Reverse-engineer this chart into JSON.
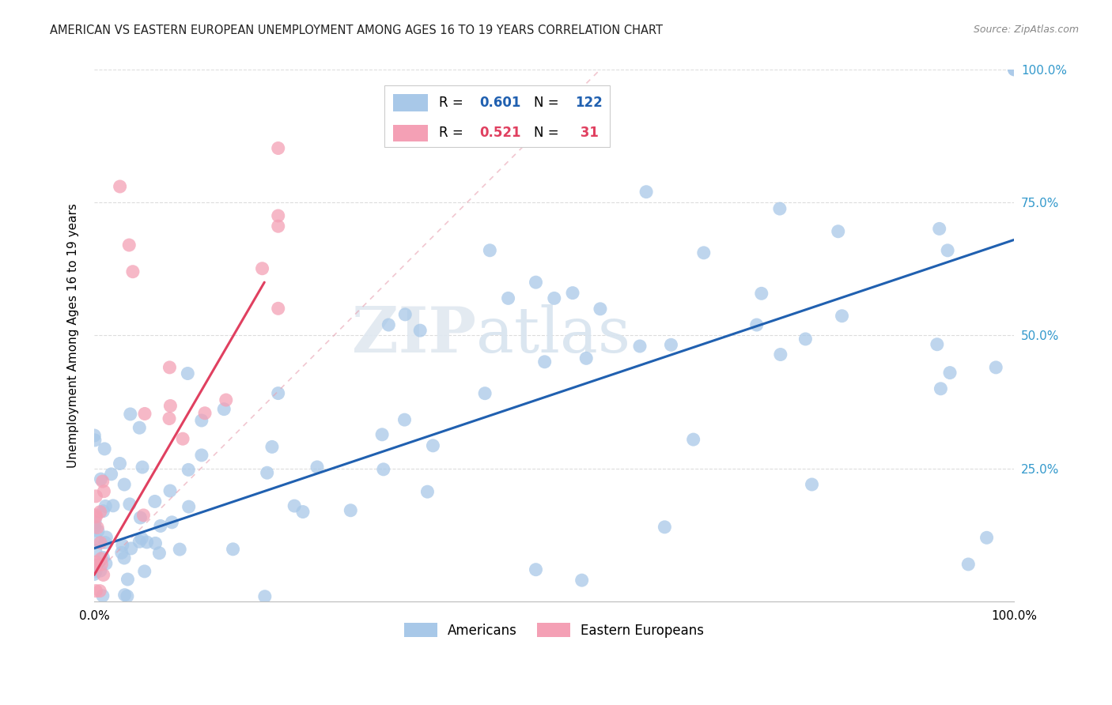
{
  "title": "AMERICAN VS EASTERN EUROPEAN UNEMPLOYMENT AMONG AGES 16 TO 19 YEARS CORRELATION CHART",
  "source": "Source: ZipAtlas.com",
  "ylabel": "Unemployment Among Ages 16 to 19 years",
  "xlim": [
    0,
    1
  ],
  "ylim": [
    0,
    1
  ],
  "blue_R": 0.601,
  "blue_N": 122,
  "pink_R": 0.521,
  "pink_N": 31,
  "blue_color": "#a8c8e8",
  "pink_color": "#f4a0b5",
  "blue_line_color": "#2060b0",
  "pink_line_color": "#e04060",
  "blue_line": [
    0.0,
    0.1,
    1.0,
    0.68
  ],
  "pink_solid_line": [
    0.0,
    0.05,
    0.185,
    0.6
  ],
  "pink_dash_line": [
    0.0,
    0.05,
    0.55,
    1.0
  ],
  "watermark_zip": "ZIP",
  "watermark_atlas": "atlas",
  "grid_color": "#dddddd"
}
